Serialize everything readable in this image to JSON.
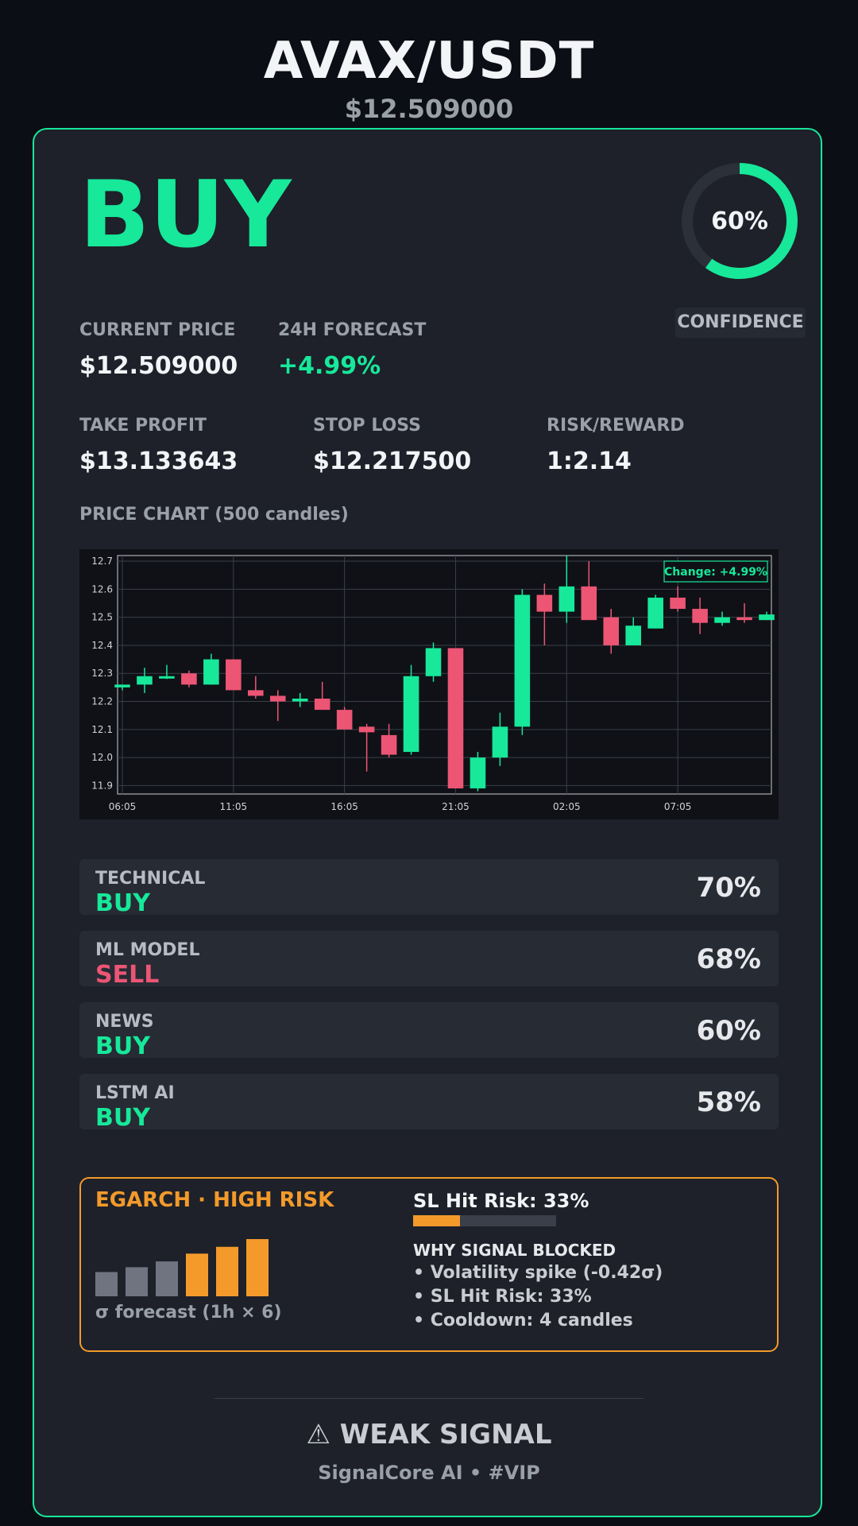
{
  "header": {
    "pair": "AVAX/USDT",
    "price": "$12.509000"
  },
  "signal": {
    "action": "BUY",
    "action_color": "#17e89a",
    "confidence_value": 0.6,
    "confidence_text": "60%",
    "confidence_label": "CONFIDENCE"
  },
  "stats": {
    "current_price_label": "CURRENT PRICE",
    "current_price": "$12.509000",
    "forecast_label": "24H FORECAST",
    "forecast": "+4.99%",
    "take_profit_label": "TAKE PROFIT",
    "take_profit": "$13.133643",
    "stop_loss_label": "STOP LOSS",
    "stop_loss": "$12.217500",
    "rr_label": "RISK/REWARD",
    "rr": "1:2.14"
  },
  "chart_title": "PRICE CHART (500 candles)",
  "chart_data": {
    "type": "candlestick",
    "title": "",
    "annotation": "Change: +4.99%",
    "x_ticks": [
      "06:05",
      "11:05",
      "16:05",
      "21:05",
      "02:05",
      "07:05"
    ],
    "y_ticks": [
      "11.9",
      "12.0",
      "12.1",
      "12.2",
      "12.3",
      "12.4",
      "12.5",
      "12.6",
      "12.7"
    ],
    "ylim": [
      11.87,
      12.72
    ],
    "grid": true,
    "up_color": "#17e89a",
    "down_color": "#ec5574",
    "candles": [
      {
        "o": 12.25,
        "h": 12.26,
        "l": 12.24,
        "c": 12.26
      },
      {
        "o": 12.26,
        "h": 12.32,
        "l": 12.23,
        "c": 12.29
      },
      {
        "o": 12.29,
        "h": 12.33,
        "l": 12.28,
        "c": 12.29
      },
      {
        "o": 12.3,
        "h": 12.31,
        "l": 12.25,
        "c": 12.26
      },
      {
        "o": 12.26,
        "h": 12.37,
        "l": 12.26,
        "c": 12.35
      },
      {
        "o": 12.35,
        "h": 12.35,
        "l": 12.24,
        "c": 12.24
      },
      {
        "o": 12.24,
        "h": 12.29,
        "l": 12.21,
        "c": 12.22
      },
      {
        "o": 12.22,
        "h": 12.24,
        "l": 12.13,
        "c": 12.2
      },
      {
        "o": 12.2,
        "h": 12.23,
        "l": 12.18,
        "c": 12.21
      },
      {
        "o": 12.21,
        "h": 12.27,
        "l": 12.17,
        "c": 12.17
      },
      {
        "o": 12.17,
        "h": 12.18,
        "l": 12.1,
        "c": 12.1
      },
      {
        "o": 12.11,
        "h": 12.12,
        "l": 11.95,
        "c": 12.09
      },
      {
        "o": 12.08,
        "h": 12.12,
        "l": 12.0,
        "c": 12.01
      },
      {
        "o": 12.02,
        "h": 12.33,
        "l": 12.01,
        "c": 12.29
      },
      {
        "o": 12.29,
        "h": 12.41,
        "l": 12.27,
        "c": 12.39
      },
      {
        "o": 12.39,
        "h": 12.39,
        "l": 11.89,
        "c": 11.89
      },
      {
        "o": 11.89,
        "h": 12.02,
        "l": 11.88,
        "c": 12.0
      },
      {
        "o": 12.0,
        "h": 12.16,
        "l": 11.97,
        "c": 12.11
      },
      {
        "o": 12.11,
        "h": 12.6,
        "l": 12.08,
        "c": 12.58
      },
      {
        "o": 12.58,
        "h": 12.62,
        "l": 12.4,
        "c": 12.52
      },
      {
        "o": 12.52,
        "h": 12.72,
        "l": 12.48,
        "c": 12.61
      },
      {
        "o": 12.61,
        "h": 12.7,
        "l": 12.49,
        "c": 12.49
      },
      {
        "o": 12.5,
        "h": 12.53,
        "l": 12.37,
        "c": 12.4
      },
      {
        "o": 12.4,
        "h": 12.5,
        "l": 12.4,
        "c": 12.47
      },
      {
        "o": 12.46,
        "h": 12.58,
        "l": 12.46,
        "c": 12.57
      },
      {
        "o": 12.57,
        "h": 12.61,
        "l": 12.52,
        "c": 12.53
      },
      {
        "o": 12.53,
        "h": 12.57,
        "l": 12.44,
        "c": 12.48
      },
      {
        "o": 12.48,
        "h": 12.52,
        "l": 12.47,
        "c": 12.5
      },
      {
        "o": 12.5,
        "h": 12.55,
        "l": 12.48,
        "c": 12.49
      },
      {
        "o": 12.49,
        "h": 12.52,
        "l": 12.49,
        "c": 12.51
      }
    ]
  },
  "models": [
    {
      "name": "TECHNICAL",
      "signal": "BUY",
      "signal_color": "#17e89a",
      "pct": "70%"
    },
    {
      "name": "ML MODEL",
      "signal": "SELL",
      "signal_color": "#ec5574",
      "pct": "68%"
    },
    {
      "name": "NEWS",
      "signal": "BUY",
      "signal_color": "#17e89a",
      "pct": "60%"
    },
    {
      "name": "LSTM AI",
      "signal": "BUY",
      "signal_color": "#17e89a",
      "pct": "58%"
    }
  ],
  "risk": {
    "title": "EGARCH · HIGH RISK",
    "sigma_label": "σ forecast (1h × 6)",
    "sigma_bars": [
      0.5,
      0.6,
      0.72,
      0.88,
      1.02,
      1.18
    ],
    "sigma_bar_colors": [
      "#6f7480",
      "#6f7480",
      "#6f7480",
      "#f39a2b",
      "#f39a2b",
      "#f39a2b"
    ],
    "sl_hit_title": "SL Hit Risk: 33%",
    "sl_hit_value": 0.33,
    "why_title": "WHY SIGNAL BLOCKED",
    "why_items": [
      "• Volatility spike (-0.42σ)",
      "• SL Hit Risk: 33%",
      "• Cooldown: 4 candles"
    ]
  },
  "footer": {
    "weak_signal": "⚠ WEAK SIGNAL",
    "brand": "SignalCore AI • #VIP"
  }
}
